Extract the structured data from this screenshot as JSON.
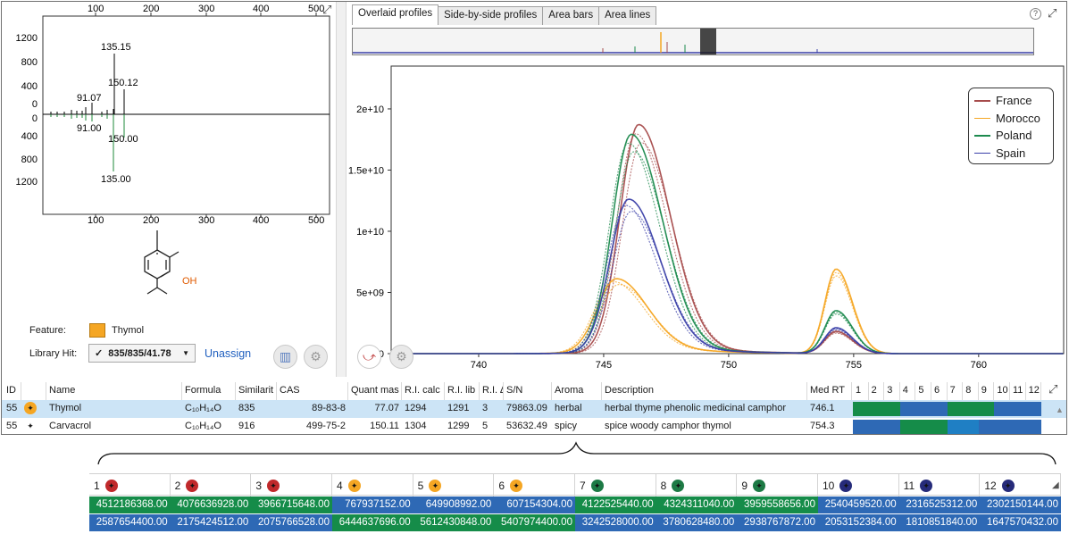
{
  "spectrum": {
    "x_ticks_top": [
      "100",
      "200",
      "300",
      "400",
      "500"
    ],
    "x_ticks_bottom": [
      "100",
      "200",
      "300",
      "400",
      "500"
    ],
    "y_ticks_top": [
      "1200",
      "800",
      "400",
      "0"
    ],
    "y_ticks_bottom": [
      "0",
      "400",
      "800",
      "1200"
    ],
    "peaks_top": [
      "135.15",
      "150.12",
      "91.07"
    ],
    "peaks_bottom": [
      "91.00",
      "150.00",
      "135.00"
    ],
    "oh_label": "OH"
  },
  "feature": {
    "label": "Feature:",
    "name": "Thymol",
    "color": "#f5a623"
  },
  "library_hit": {
    "label": "Library Hit:",
    "check": "✓",
    "value": "835/835/41.78",
    "unassign": "Unassign"
  },
  "tabs": [
    "Overlaid profiles",
    "Side-by-side profiles",
    "Area bars",
    "Area lines"
  ],
  "help": "?",
  "chart_data": {
    "type": "line",
    "x_ticks": [
      "740",
      "745",
      "750",
      "755",
      "760"
    ],
    "y_ticks": [
      "0",
      "5e+09",
      "1e+10",
      "1.5e+10",
      "2e+10"
    ],
    "xlim": [
      736.5,
      763.4
    ],
    "ylim": [
      0,
      23500000000.0
    ],
    "legend_position": "top-right",
    "series": [
      {
        "name": "France",
        "color": "#a64b4b",
        "peak1": {
          "x": 746.4,
          "y": 18600000000.0
        },
        "peak2": {
          "x": 754.3,
          "y": 1800000000.0
        }
      },
      {
        "name": "Morocco",
        "color": "#f5a623",
        "peak1": {
          "x": 745.5,
          "y": 6000000000.0
        },
        "peak2": {
          "x": 754.3,
          "y": 6900000000.0
        }
      },
      {
        "name": "Poland",
        "color": "#1d8a4e",
        "peak1": {
          "x": 746.1,
          "y": 17800000000.0
        },
        "peak2": {
          "x": 754.3,
          "y": 3500000000.0
        }
      },
      {
        "name": "Spain",
        "color": "#3a3fa8",
        "peak1": {
          "x": 746.0,
          "y": 12500000000.0
        },
        "peak2": {
          "x": 754.3,
          "y": 2100000000.0
        }
      }
    ]
  },
  "table": {
    "headers": [
      "ID",
      "",
      "Name",
      "Formula",
      "Similarit",
      "CAS",
      "Quant mas",
      "R.I. calc",
      "R.I. lib",
      "R.I. ∆",
      "S/N",
      "Aroma",
      "Description",
      "Med RT",
      "1",
      "2",
      "3",
      "4",
      "5",
      "6",
      "7",
      "8",
      "9",
      "10",
      "11",
      "12"
    ],
    "rows": [
      {
        "id": "55",
        "name": "Thymol",
        "formula": "C₁₀H₁₄O",
        "similarity": "835",
        "cas": "89-83-8",
        "quant_mass": "77.07",
        "ri_calc": "1294",
        "ri_lib": "1291",
        "ri_delta": "3",
        "sn": "79863.09",
        "aroma": "herbal",
        "description": "herbal thyme phenolic medicinal camphor",
        "med_rt": "746.1"
      },
      {
        "id": "55",
        "name": "Carvacrol",
        "formula": "C₁₀H₁₄O",
        "similarity": "916",
        "cas": "499-75-2",
        "quant_mass": "150.11",
        "ri_calc": "1304",
        "ri_lib": "1299",
        "ri_delta": "5",
        "sn": "53632.49",
        "aroma": "spicy",
        "description": "spice woody camphor thymol",
        "med_rt": "754.3"
      }
    ]
  },
  "sample_table": {
    "columns": [
      {
        "label": "1",
        "color": "#c0292b"
      },
      {
        "label": "2",
        "color": "#c0292b"
      },
      {
        "label": "3",
        "color": "#c0292b"
      },
      {
        "label": "4",
        "color": "#f5a623"
      },
      {
        "label": "5",
        "color": "#f5a623"
      },
      {
        "label": "6",
        "color": "#f5a623"
      },
      {
        "label": "7",
        "color": "#1d7a45"
      },
      {
        "label": "8",
        "color": "#1d7a45"
      },
      {
        "label": "9",
        "color": "#1d7a45"
      },
      {
        "label": "10",
        "color": "#262b7a"
      },
      {
        "label": "11",
        "color": "#262b7a"
      },
      {
        "label": "12",
        "color": "#262b7a"
      }
    ],
    "rows": [
      [
        "4512186368.00",
        "4076636928.00",
        "3966715648.00",
        "767937152.00",
        "649908992.00",
        "607154304.00",
        "4122525440.00",
        "4324311040.00",
        "3959558656.00",
        "2540459520.00",
        "2316525312.00",
        "2302150144.00"
      ],
      [
        "2587654400.00",
        "2175424512.00",
        "2075766528.00",
        "6444637696.00",
        "5612430848.00",
        "5407974400.00",
        "3242528000.00",
        "3780628480.00",
        "2938767872.00",
        "2053152384.00",
        "1810851840.00",
        "1647570432.00"
      ]
    ],
    "row_colors": [
      [
        "#158c49",
        "#158c49",
        "#158c49",
        "#2e69b5",
        "#2e69b5",
        "#2e69b5",
        "#158c49",
        "#158c49",
        "#158c49",
        "#2e69b5",
        "#2e69b5",
        "#2e69b5"
      ],
      [
        "#2e69b5",
        "#2e69b5",
        "#2e69b5",
        "#158c49",
        "#158c49",
        "#158c49",
        "#2e69b5",
        "#2e69b5",
        "#2e69b5",
        "#2e69b5",
        "#2e69b5",
        "#2e69b5"
      ]
    ]
  }
}
